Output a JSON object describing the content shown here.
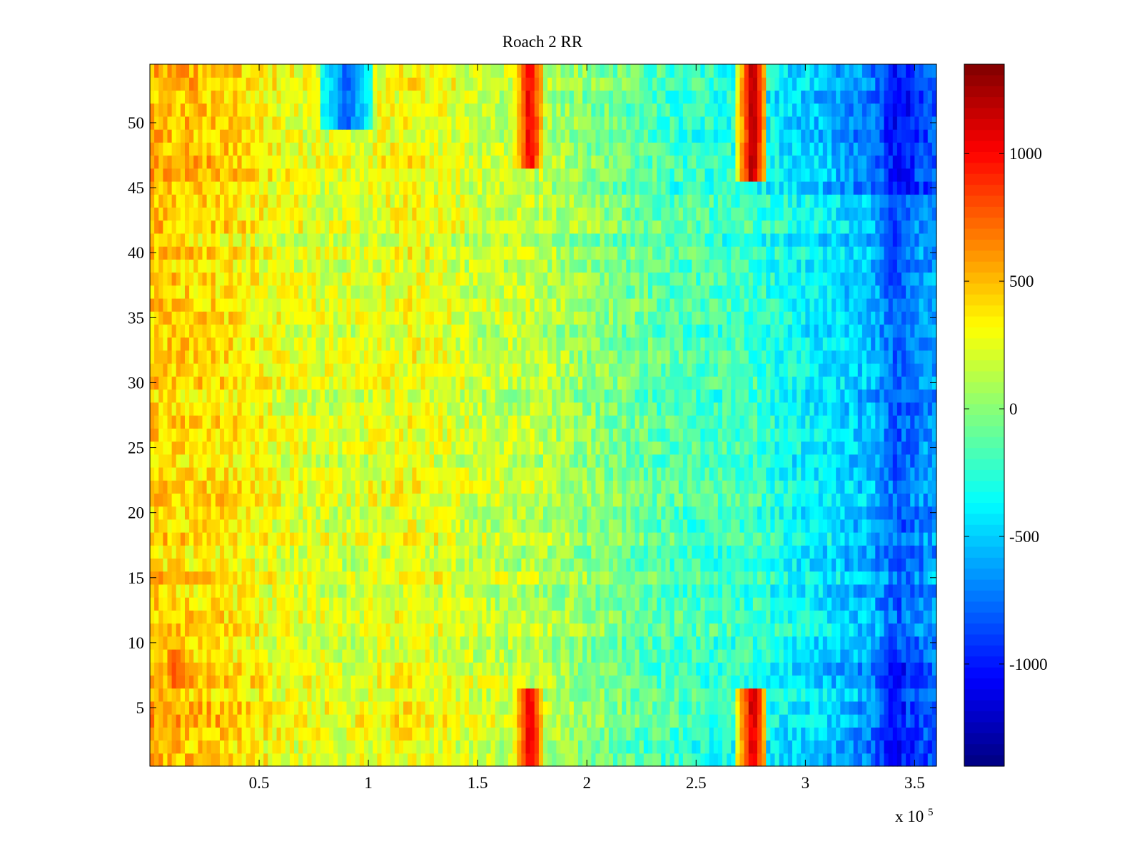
{
  "chart_data": {
    "type": "heatmap",
    "title": "Roach 2 RR",
    "xlabel": "",
    "ylabel": "",
    "x_exponent_label": "x 10",
    "x_exponent_power": "5",
    "xlim": [
      0,
      3.6
    ],
    "ylim": [
      0.5,
      54.5
    ],
    "x_ticks": [
      0.5,
      1,
      1.5,
      2,
      2.5,
      3,
      3.5
    ],
    "x_tick_labels": [
      "0.5",
      "1",
      "1.5",
      "2",
      "2.5",
      "3",
      "3.5"
    ],
    "y_ticks": [
      5,
      10,
      15,
      20,
      25,
      30,
      35,
      40,
      45,
      50
    ],
    "y_tick_labels": [
      "5",
      "10",
      "15",
      "20",
      "25",
      "30",
      "35",
      "40",
      "45",
      "50"
    ],
    "rows": 54,
    "colormap": "jet",
    "clim": [
      -1400,
      1350
    ],
    "colorbar": {
      "ticks": [
        -1000,
        -500,
        0,
        500,
        1000
      ],
      "tick_labels": [
        "-1000",
        "-500",
        "0",
        "500",
        "1000"
      ]
    },
    "structure": {
      "columns_x_1e5": [
        0.05,
        0.35,
        0.62,
        0.9,
        1.2,
        1.5,
        1.74,
        1.85,
        2.0,
        2.2,
        2.4,
        2.58,
        2.76,
        2.9,
        3.1,
        3.3,
        3.42,
        3.58
      ],
      "column_baseline": [
        440,
        380,
        240,
        190,
        280,
        160,
        140,
        80,
        10,
        -80,
        -160,
        -200,
        -220,
        -330,
        -430,
        -560,
        -820,
        -640
      ],
      "high_band_rows": [
        1,
        2,
        3,
        4,
        5,
        7,
        8,
        45,
        46,
        47,
        48,
        49,
        50,
        51,
        52,
        53,
        54
      ],
      "hot_spots": [
        {
          "x": 1.74,
          "rows": [
            1,
            6
          ],
          "value": 1150
        },
        {
          "x": 1.74,
          "rows": [
            47,
            54
          ],
          "value": 1100
        },
        {
          "x": 2.76,
          "rows": [
            1,
            6
          ],
          "value": 1200
        },
        {
          "x": 2.76,
          "rows": [
            46,
            54
          ],
          "value": 1250
        },
        {
          "x": 0.12,
          "rows": [
            7,
            9
          ],
          "value": 850
        }
      ],
      "cold_spots": [
        {
          "x": 3.4,
          "rows": [
            1,
            9
          ],
          "value": -1100
        },
        {
          "x": 3.4,
          "rows": [
            38,
            54
          ],
          "value": -950
        },
        {
          "x": 0.9,
          "rows": [
            50,
            54
          ],
          "value": -800
        }
      ]
    }
  }
}
